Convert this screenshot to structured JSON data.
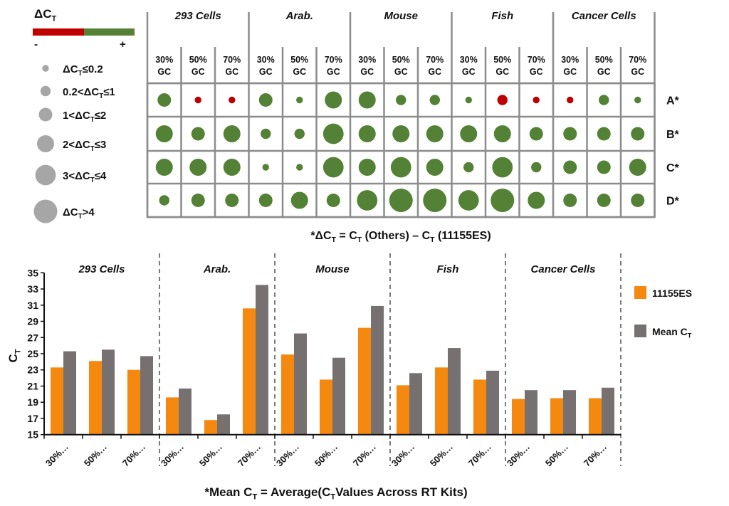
{
  "colors": {
    "positive": "#538135",
    "negative": "#c00000",
    "legend_bubble": "#a6a6a6",
    "grid": "#8c8c8c",
    "orange": "#f5880f",
    "gray": "#767170"
  },
  "chart_data": [
    {
      "type": "bubble-grid",
      "legend_title": [
        {
          "t": "ΔC"
        },
        {
          "t": "T",
          "sub": true
        }
      ],
      "color_scale": {
        "minus": "-",
        "plus": "+"
      },
      "size_legend": [
        [
          {
            "t": "ΔC"
          },
          {
            "t": "T",
            "sub": true
          },
          {
            "t": "≤0.2"
          }
        ],
        [
          {
            "t": "0.2<ΔC"
          },
          {
            "t": "T",
            "sub": true
          },
          {
            "t": "≤1"
          }
        ],
        [
          {
            "t": "1<ΔC"
          },
          {
            "t": "T",
            "sub": true
          },
          {
            "t": "≤2"
          }
        ],
        [
          {
            "t": "2<ΔC"
          },
          {
            "t": "T",
            "sub": true
          },
          {
            "t": "≤3"
          }
        ],
        [
          {
            "t": "3<ΔC"
          },
          {
            "t": "T",
            "sub": true
          },
          {
            "t": "≤4"
          }
        ],
        [
          {
            "t": "ΔC"
          },
          {
            "t": "T",
            "sub": true
          },
          {
            "t": ">4"
          }
        ]
      ],
      "groups": [
        "293 Cells",
        "Arab.",
        "Mouse",
        "Fish",
        "Cancer Cells"
      ],
      "columns": [
        "30%\nGC",
        "50%\nGC",
        "70%\nGC"
      ],
      "rows": [
        "A*",
        "B*",
        "C*",
        "D*"
      ],
      "size_level_note": "values are size-legend levels 1-6; sign gives color (+ green, - red)",
      "values": [
        [
          3,
          -1,
          -1,
          3,
          1,
          4,
          4,
          2,
          2,
          1,
          -2,
          -1,
          -1,
          2,
          1
        ],
        [
          4,
          3,
          4,
          2,
          2,
          5,
          4,
          4,
          4,
          4,
          4,
          3,
          3,
          3,
          3
        ],
        [
          4,
          4,
          4,
          1,
          1,
          5,
          4,
          5,
          4,
          2,
          5,
          2,
          3,
          3,
          4
        ],
        [
          2,
          3,
          3,
          3,
          4,
          3,
          5,
          6,
          6,
          5,
          6,
          4,
          3,
          3,
          3
        ]
      ],
      "footnote": [
        {
          "t": "*ΔC"
        },
        {
          "t": "T",
          "sub": true
        },
        {
          "t": " = C"
        },
        {
          "t": "T",
          "sub": true
        },
        {
          "t": " (Others) – C"
        },
        {
          "t": "T",
          "sub": true
        },
        {
          "t": " (11155ES)"
        }
      ]
    },
    {
      "type": "bar",
      "groups": [
        "293 Cells",
        "Arab.",
        "Mouse",
        "Fish",
        "Cancer Cells"
      ],
      "categories": [
        "30%…",
        "50%…",
        "70%…",
        "30%…",
        "50%…",
        "70%…",
        "30%…",
        "50%…",
        "70%…",
        "30%…",
        "50%…",
        "70%…",
        "30%…",
        "50%…",
        "70%…"
      ],
      "series": [
        {
          "name": "11155ES",
          "values": [
            23.3,
            24.1,
            23.0,
            19.6,
            16.8,
            30.6,
            24.9,
            21.8,
            28.2,
            21.1,
            23.3,
            21.8,
            19.4,
            19.5,
            19.5
          ]
        },
        {
          "name": [
            {
              "t": "Mean C"
            },
            {
              "t": "T",
              "sub": true
            }
          ],
          "values": [
            25.3,
            25.5,
            24.7,
            20.7,
            17.5,
            33.5,
            27.5,
            24.5,
            30.9,
            22.6,
            25.7,
            22.9,
            20.5,
            20.5,
            20.8
          ]
        }
      ],
      "ylabel": [
        {
          "t": "C"
        },
        {
          "t": "T",
          "sub": true
        }
      ],
      "ylim": [
        15,
        35
      ],
      "yticks": [
        15,
        17,
        19,
        21,
        23,
        25,
        27,
        29,
        31,
        33,
        35
      ],
      "legend_position": "right",
      "footnote": [
        {
          "t": "*Mean C"
        },
        {
          "t": "T",
          "sub": true
        },
        {
          "t": " = Average(C"
        },
        {
          "t": "T",
          "sub": true
        },
        {
          "t": "Values Across RT Kits)"
        }
      ]
    }
  ]
}
